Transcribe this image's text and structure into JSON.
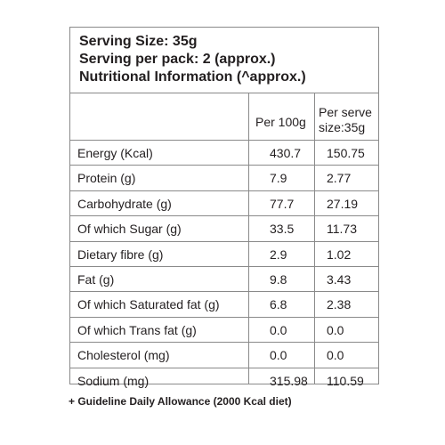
{
  "header": {
    "serving_size": "Serving Size: 35g",
    "serving_per_pack": "Serving per pack: 2 (approx.)",
    "nutritional_info": "Nutritional Information (^approx.)"
  },
  "table": {
    "columns": [
      "Per 100g",
      "Per serve size:35g"
    ],
    "col2_line1": "Per serve",
    "col2_line2": "size:35g",
    "rows": [
      {
        "name": "Energy (Kcal)",
        "per100": "430.7",
        "perserve": "150.75"
      },
      {
        "name": "Protein (g)",
        "per100": "7.9",
        "perserve": "2.77"
      },
      {
        "name": "Carbohydrate (g)",
        "per100": "77.7",
        "perserve": "27.19"
      },
      {
        "name": "Of which Sugar (g)",
        "per100": "33.5",
        "perserve": "11.73"
      },
      {
        "name": "Dietary fibre (g)",
        "per100": "2.9",
        "perserve": "1.02"
      },
      {
        "name": "Fat (g)",
        "per100": "9.8",
        "perserve": "3.43"
      },
      {
        "name": "Of which Saturated fat (g)",
        "per100": "6.8",
        "perserve": "2.38"
      },
      {
        "name": "Of which Trans fat (g)",
        "per100": "0.0",
        "perserve": "0.0"
      },
      {
        "name": "Cholesterol (mg)",
        "per100": "0.0",
        "perserve": "0.0"
      },
      {
        "name": "Sodium (mg)",
        "per100": "315.98",
        "perserve": "110.59"
      }
    ]
  },
  "footnote": "+ Guideline Daily Allowance (2000 Kcal diet)"
}
